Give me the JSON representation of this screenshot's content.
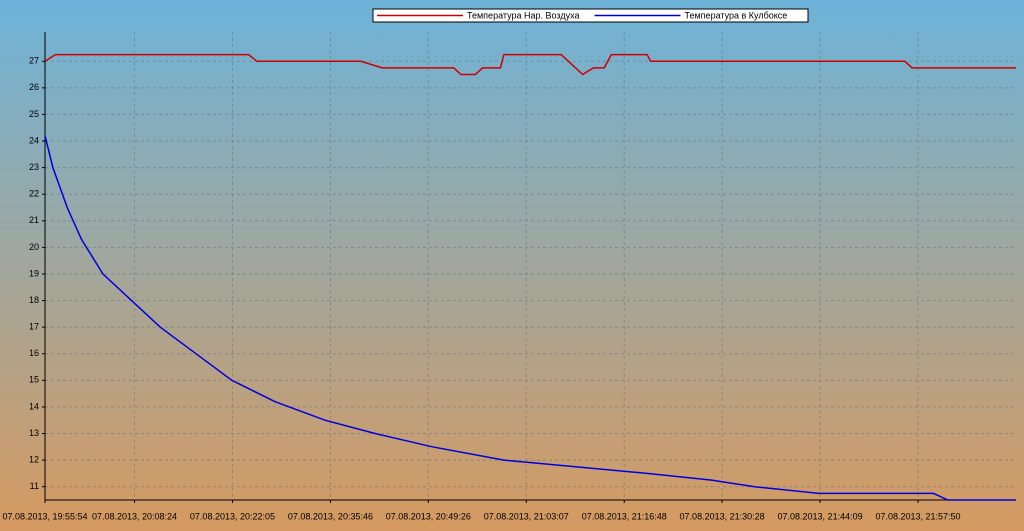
{
  "chart_data": {
    "type": "line",
    "xlim": [
      "07.08.2013, 19:55:54",
      "07.08.2013, 22:11:31"
    ],
    "xticks": [
      "07.08.2013, 19:55:54",
      "07.08.2013, 20:08:24",
      "07.08.2013, 20:22:05",
      "07.08.2013, 20:35:46",
      "07.08.2013, 20:49:26",
      "07.08.2013, 21:03:07",
      "07.08.2013, 21:16:48",
      "07.08.2013, 21:30:28",
      "07.08.2013, 21:44:09",
      "07.08.2013, 21:57:50"
    ],
    "ylim": [
      10.5,
      28.1
    ],
    "yticks": [
      11,
      12,
      13,
      14,
      15,
      16,
      17,
      18,
      19,
      20,
      21,
      22,
      23,
      24,
      25,
      26,
      27
    ],
    "grid": true,
    "legend": "top",
    "series": [
      {
        "name": "Температура Нар. Воздуха",
        "color": "#cc0000",
        "x": [
          "07.08.2013, 19:55:54",
          "07.08.2013, 19:57:20",
          "07.08.2013, 20:24:20",
          "07.08.2013, 20:25:30",
          "07.08.2013, 20:40:00",
          "07.08.2013, 20:43:00",
          "07.08.2013, 20:53:00",
          "07.08.2013, 20:54:00",
          "07.08.2013, 20:56:00",
          "07.08.2013, 20:57:00",
          "07.08.2013, 20:59:30",
          "07.08.2013, 21:00:00",
          "07.08.2013, 21:08:00",
          "07.08.2013, 21:09:00",
          "07.08.2013, 21:11:00",
          "07.08.2013, 21:12:30",
          "07.08.2013, 21:14:00",
          "07.08.2013, 21:15:00",
          "07.08.2013, 21:20:00",
          "07.08.2013, 21:20:30",
          "07.08.2013, 21:56:00",
          "07.08.2013, 21:57:00",
          "07.08.2013, 22:11:30"
        ],
        "values": [
          27,
          27.25,
          27.25,
          27,
          27,
          26.75,
          26.75,
          26.5,
          26.5,
          26.75,
          26.75,
          27.25,
          27.25,
          27,
          26.5,
          26.75,
          26.75,
          27.25,
          27.25,
          27,
          27,
          26.75,
          26.75
        ]
      },
      {
        "name": "Температура в Кулбоксе",
        "color": "#0000dd",
        "x": [
          "07.08.2013, 19:55:54",
          "07.08.2013, 19:57:00",
          "07.08.2013, 19:59:00",
          "07.08.2013, 20:01:00",
          "07.08.2013, 20:04:00",
          "07.08.2013, 20:08:00",
          "07.08.2013, 20:12:00",
          "07.08.2013, 20:17:00",
          "07.08.2013, 20:22:00",
          "07.08.2013, 20:28:00",
          "07.08.2013, 20:35:00",
          "07.08.2013, 20:42:00",
          "07.08.2013, 20:50:00",
          "07.08.2013, 21:00:00",
          "07.08.2013, 21:10:00",
          "07.08.2013, 21:20:00",
          "07.08.2013, 21:29:00",
          "07.08.2013, 21:35:00",
          "07.08.2013, 21:44:00",
          "07.08.2013, 22:00:00",
          "07.08.2013, 22:02:00",
          "07.08.2013, 22:11:30"
        ],
        "values": [
          24.2,
          23,
          21.5,
          20.3,
          19,
          18,
          17,
          16,
          15,
          14.2,
          13.5,
          13,
          12.5,
          12,
          11.75,
          11.5,
          11.25,
          11,
          10.75,
          10.75,
          10.5,
          10.5
        ]
      }
    ]
  }
}
